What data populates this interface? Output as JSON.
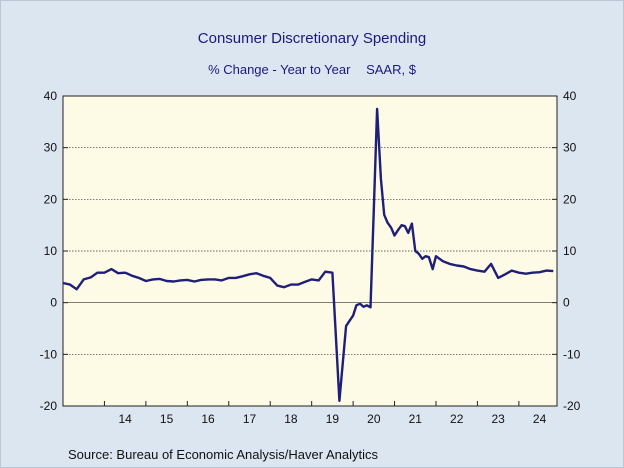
{
  "chart_data": {
    "type": "line",
    "title": "Consumer Discretionary Spending",
    "subtitle": "% Change - Year to Year",
    "subtitle_note": "SAAR, $",
    "source": "Source:  Bureau of Economic Analysis/Haver Analytics",
    "ylim": [
      -20,
      40
    ],
    "y_ticks": [
      -20,
      -10,
      0,
      10,
      20,
      30,
      40
    ],
    "xlim": [
      2013.0,
      2024.92
    ],
    "x_tick_labels": [
      "14",
      "15",
      "16",
      "17",
      "18",
      "19",
      "20",
      "21",
      "22",
      "23",
      "24"
    ],
    "grid": "horizontal dashed",
    "dual_y_axis": true,
    "colors": {
      "line": "#1f1f7a",
      "plot_bg": "#fdfbe6",
      "page_bg": "#dce6f1",
      "text": "#1a1a7a"
    },
    "series": [
      {
        "x": [
          2013.0,
          2013.17,
          2013.33,
          2013.5,
          2013.67,
          2013.83,
          2014.0,
          2014.17,
          2014.33,
          2014.5,
          2014.67,
          2014.83,
          2015.0,
          2015.17,
          2015.33,
          2015.5,
          2015.67,
          2015.83,
          2016.0,
          2016.17,
          2016.33,
          2016.5,
          2016.67,
          2016.83,
          2017.0,
          2017.17,
          2017.33,
          2017.5,
          2017.67,
          2017.83,
          2018.0,
          2018.17,
          2018.33,
          2018.5,
          2018.67,
          2018.83,
          2019.0,
          2019.17,
          2019.33,
          2019.5,
          2019.67,
          2019.83,
          2020.0,
          2020.08,
          2020.17,
          2020.25,
          2020.33,
          2020.42,
          2020.5,
          2020.58,
          2020.67,
          2020.75,
          2020.83,
          2020.92,
          2021.0,
          2021.08,
          2021.17,
          2021.25,
          2021.33,
          2021.42,
          2021.5,
          2021.58,
          2021.67,
          2021.75,
          2021.83,
          2021.92,
          2022.0,
          2022.17,
          2022.33,
          2022.5,
          2022.67,
          2022.83,
          2023.0,
          2023.17,
          2023.33,
          2023.5,
          2023.67,
          2023.83,
          2024.0,
          2024.17,
          2024.33,
          2024.5,
          2024.67,
          2024.83
        ],
        "y": [
          3.8,
          3.5,
          2.6,
          4.5,
          4.9,
          5.8,
          5.8,
          6.5,
          5.7,
          5.8,
          5.2,
          4.8,
          4.2,
          4.5,
          4.6,
          4.2,
          4.1,
          4.3,
          4.4,
          4.1,
          4.4,
          4.5,
          4.5,
          4.3,
          4.8,
          4.8,
          5.1,
          5.5,
          5.7,
          5.2,
          4.8,
          3.3,
          3.0,
          3.5,
          3.5,
          4.0,
          4.5,
          4.3,
          6.0,
          5.8,
          -19.0,
          -4.5,
          -2.5,
          -0.5,
          -0.2,
          -0.8,
          -0.5,
          -0.9,
          18.0,
          37.5,
          24.0,
          17.0,
          15.5,
          14.5,
          13.0,
          14.0,
          15.0,
          14.8,
          13.5,
          15.3,
          10.0,
          9.5,
          8.5,
          9.0,
          8.8,
          6.5,
          9.0,
          8.0,
          7.5,
          7.2,
          7.0,
          6.5,
          6.2,
          6.0,
          7.5,
          4.8,
          5.5,
          6.2,
          5.8,
          5.6,
          5.8,
          5.9,
          6.2,
          6.1
        ]
      }
    ]
  }
}
